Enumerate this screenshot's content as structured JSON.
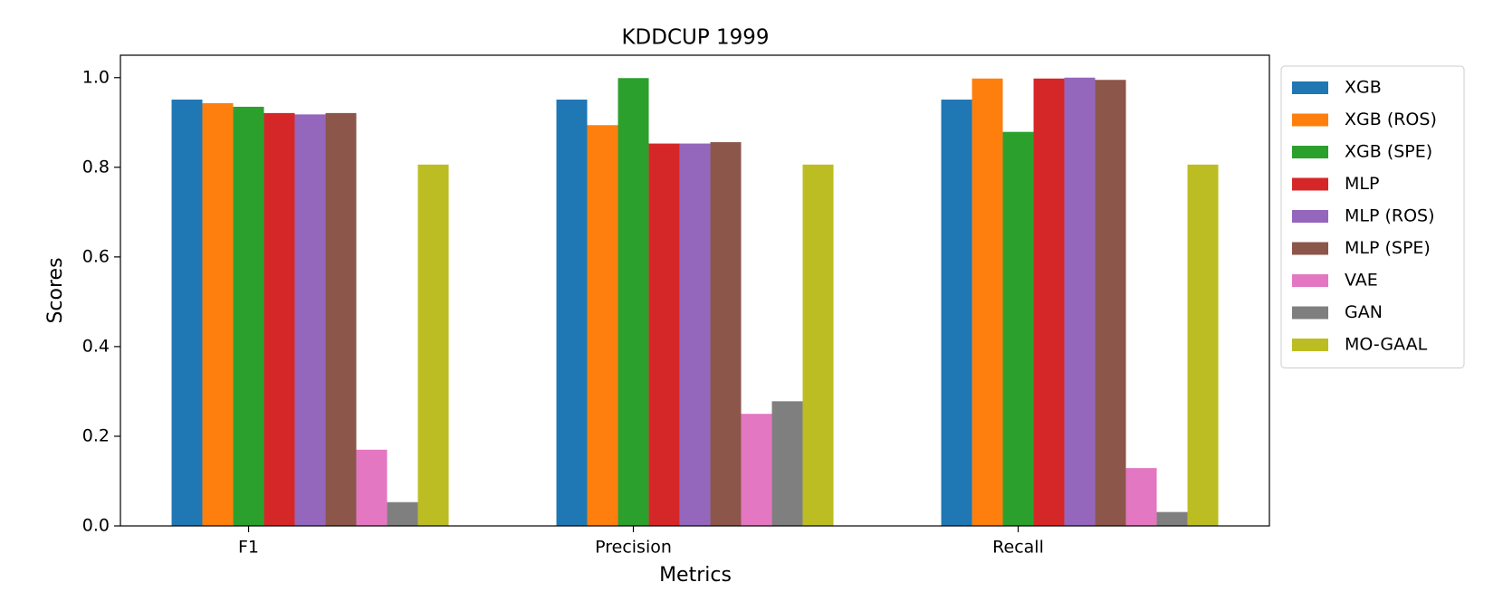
{
  "chart_data": {
    "type": "bar",
    "title": "KDDCUP 1999",
    "x_label": "Metrics",
    "y_label": "Scores",
    "categories": [
      "F1",
      "Precision",
      "Recall"
    ],
    "series": [
      {
        "name": "XGB",
        "color": "#1f77b4",
        "values": [
          0.951,
          0.951,
          0.951
        ]
      },
      {
        "name": "XGB (ROS)",
        "color": "#ff7f0e",
        "values": [
          0.943,
          0.894,
          0.998
        ]
      },
      {
        "name": "XGB (SPE)",
        "color": "#2ca02c",
        "values": [
          0.935,
          0.999,
          0.879
        ]
      },
      {
        "name": "MLP",
        "color": "#d62728",
        "values": [
          0.921,
          0.853,
          0.998
        ]
      },
      {
        "name": "MLP (ROS)",
        "color": "#9467bd",
        "values": [
          0.918,
          0.853,
          1.0
        ]
      },
      {
        "name": "MLP (SPE)",
        "color": "#8c564b",
        "values": [
          0.921,
          0.856,
          0.995
        ]
      },
      {
        "name": "VAE",
        "color": "#e377c2",
        "values": [
          0.17,
          0.25,
          0.129
        ]
      },
      {
        "name": "GAN",
        "color": "#7f7f7f",
        "values": [
          0.053,
          0.278,
          0.031
        ]
      },
      {
        "name": "MO-GAAL",
        "color": "#bcbd22",
        "values": [
          0.806,
          0.806,
          0.806
        ]
      }
    ],
    "ylim": [
      0,
      1.05
    ],
    "yticks": [
      {
        "value": 0,
        "label": "0.0"
      },
      {
        "value": 0.2,
        "label": "0.2"
      },
      {
        "value": 0.4,
        "label": "0.4"
      },
      {
        "value": 0.6,
        "label": "0.6"
      },
      {
        "value": 0.8,
        "label": "0.8"
      },
      {
        "value": 1.0,
        "label": "1.0"
      }
    ],
    "legend": "outside-right",
    "grid": false
  }
}
